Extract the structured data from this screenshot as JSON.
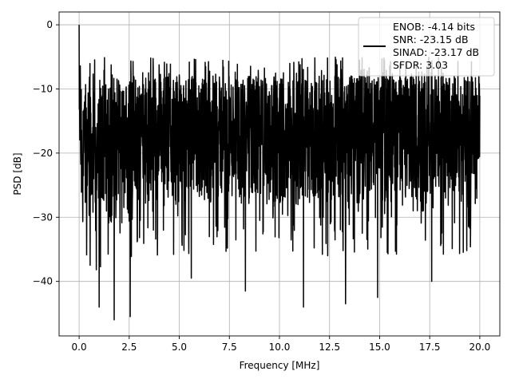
{
  "chart_data": {
    "type": "line",
    "title": "",
    "xlabel": "Frequency [MHz]",
    "ylabel": "PSD [dB]",
    "xlim": [
      -1.0,
      21.0
    ],
    "ylim": [
      -48.5,
      2.0
    ],
    "xticks": [
      0.0,
      2.5,
      5.0,
      7.5,
      10.0,
      12.5,
      15.0,
      17.5,
      20.0
    ],
    "xtick_labels": [
      "0.0",
      "2.5",
      "5.0",
      "7.5",
      "10.0",
      "12.5",
      "15.0",
      "17.5",
      "20.0"
    ],
    "yticks": [
      0,
      -10,
      -20,
      -30,
      -40
    ],
    "ytick_labels": [
      "0",
      "−10",
      "−20",
      "−30",
      "−40"
    ],
    "grid": true,
    "legend_placement": "top-right",
    "series": [
      {
        "name": "ENOB: -4.14 bits\nSNR: -23.15 dB\nSINAD: -23.17 dB\nSFDR: 3.03",
        "color": "#000000",
        "x_range": [
          0.0,
          20.0
        ],
        "peak": {
          "x": 0.0,
          "y": 0.0
        },
        "typical_band": [
          -28.0,
          -8.0
        ],
        "notable_dips": [
          {
            "x": 0.55,
            "y": -37.5
          },
          {
            "x": 1.0,
            "y": -44.0
          },
          {
            "x": 1.75,
            "y": -46.0
          },
          {
            "x": 2.55,
            "y": -45.5
          },
          {
            "x": 5.6,
            "y": -39.5
          },
          {
            "x": 8.3,
            "y": -41.5
          },
          {
            "x": 11.2,
            "y": -44.0
          },
          {
            "x": 13.3,
            "y": -43.5
          },
          {
            "x": 14.9,
            "y": -42.5
          },
          {
            "x": 17.6,
            "y": -40.0
          }
        ]
      }
    ]
  },
  "legend": {
    "lines": [
      "ENOB: -4.14 bits",
      "SNR: -23.15 dB",
      "SINAD: -23.17 dB",
      "SFDR: 3.03"
    ]
  }
}
